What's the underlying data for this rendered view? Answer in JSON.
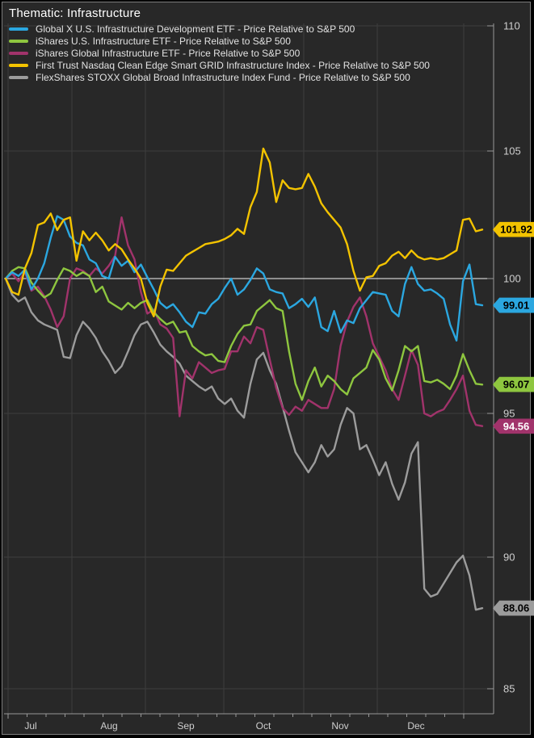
{
  "title": "Thematic: Infrastructure",
  "legend": [
    {
      "label": "Global X U.S. Infrastructure Development ETF - Price Relative to S&P 500",
      "color": "#2BA7E0"
    },
    {
      "label": "iShares U.S. Infrastructure ETF - Price Relative to S&P 500",
      "color": "#8EC63F"
    },
    {
      "label": "iShares Global Infrastructure ETF - Price Relative to S&P 500",
      "color": "#A1336B"
    },
    {
      "label": "First Trust Nasdaq Clean Edge Smart GRID Infrastructure Index - Price Relative to S&P 500",
      "color": "#F3C300"
    },
    {
      "label": "FlexShares STOXX Global Broad Infrastructure Index Fund - Price Relative to S&P 500",
      "color": "#9C9C9C"
    }
  ],
  "colors": {
    "background": "#282828",
    "frame": "#7d7d7d",
    "grid": "#3e3e3e",
    "baseline_100": "#f5f5f5",
    "axis": "#999999",
    "axis_text": "#cfcfcf"
  },
  "chart_data": {
    "type": "line",
    "title": "Thematic: Infrastructure",
    "xlabel": "",
    "ylabel": "",
    "ylim": [
      85,
      110
    ],
    "grid": true,
    "legend_position": "top-left",
    "baseline_value": 100,
    "y_axis": {
      "ticks": [
        "110",
        "105",
        "100",
        "95",
        "90",
        "85"
      ],
      "tick_values": [
        110,
        105,
        100,
        95,
        90,
        85
      ]
    },
    "x_axis": {
      "labels": [
        "Jul",
        "Aug",
        "Sep",
        "Oct",
        "Nov",
        "Dec"
      ]
    },
    "series": [
      {
        "name": "FlexShares STOXX Global Broad Infrastructure Index Fund - Price Relative to S&P 500",
        "color": "#9C9C9C",
        "end_label": "88.06",
        "end_value": 88.06,
        "tag_text_color": "#000000",
        "values": [
          100.0,
          99.4,
          99.15,
          99.3,
          98.75,
          98.45,
          98.3,
          98.2,
          98.1,
          97.1,
          97.05,
          97.9,
          98.4,
          98.15,
          97.8,
          97.3,
          96.95,
          96.5,
          96.75,
          97.3,
          97.9,
          98.3,
          98.4,
          98.0,
          97.55,
          97.3,
          97.1,
          96.85,
          96.4,
          96.2,
          96.0,
          95.85,
          96.0,
          95.55,
          95.35,
          95.55,
          95.1,
          94.85,
          96.1,
          97.0,
          97.25,
          96.6,
          96.1,
          95.25,
          94.4,
          93.65,
          93.3,
          92.95,
          93.3,
          93.9,
          93.5,
          93.75,
          94.6,
          95.2,
          95.0,
          93.75,
          93.9,
          93.4,
          92.85,
          93.3,
          92.55,
          92.0,
          92.6,
          93.6,
          94.0,
          88.8,
          88.5,
          88.6,
          89.0,
          89.4,
          89.8,
          90.05,
          89.3,
          88.0,
          88.06
        ]
      },
      {
        "name": "iShares Global Infrastructure ETF - Price Relative to S&P 500",
        "color": "#A1336B",
        "end_label": "94.56",
        "end_value": 94.56,
        "tag_text_color": "#ffffff",
        "values": [
          100.0,
          100.2,
          99.9,
          100.25,
          99.55,
          99.7,
          99.35,
          98.85,
          98.2,
          98.6,
          100.0,
          100.4,
          100.3,
          100.1,
          100.4,
          100.2,
          100.5,
          100.9,
          102.4,
          101.3,
          100.75,
          99.5,
          98.7,
          98.85,
          98.3,
          98.15,
          97.8,
          94.9,
          96.6,
          96.3,
          96.9,
          96.7,
          96.5,
          96.6,
          96.65,
          97.3,
          97.3,
          97.85,
          97.6,
          98.2,
          98.1,
          97.0,
          95.95,
          95.2,
          94.95,
          95.25,
          95.1,
          95.5,
          95.35,
          95.2,
          95.2,
          95.9,
          97.5,
          98.4,
          98.95,
          99.3,
          98.6,
          97.6,
          97.1,
          96.6,
          95.9,
          95.5,
          96.4,
          97.35,
          96.8,
          95.0,
          94.9,
          95.05,
          95.15,
          95.5,
          95.9,
          96.4,
          95.1,
          94.6,
          94.56
        ]
      },
      {
        "name": "iShares U.S. Infrastructure ETF - Price Relative to S&P 500",
        "color": "#8EC63F",
        "end_label": "96.07",
        "end_value": 96.07,
        "tag_text_color": "#000000",
        "values": [
          100.0,
          100.3,
          100.45,
          100.4,
          99.85,
          99.55,
          99.3,
          99.45,
          99.95,
          100.4,
          100.3,
          100.1,
          100.25,
          100.1,
          99.5,
          99.7,
          99.15,
          99.0,
          98.85,
          99.1,
          98.9,
          99.1,
          99.2,
          98.75,
          98.5,
          98.3,
          98.4,
          98.0,
          98.05,
          97.5,
          97.3,
          97.15,
          97.2,
          96.95,
          96.9,
          97.5,
          97.95,
          98.25,
          98.3,
          98.8,
          99.0,
          99.2,
          98.9,
          98.8,
          97.3,
          96.1,
          95.5,
          96.2,
          96.7,
          96.0,
          96.4,
          96.2,
          95.9,
          95.7,
          96.3,
          96.5,
          96.7,
          97.35,
          97.0,
          96.3,
          95.85,
          96.6,
          97.5,
          97.3,
          97.5,
          96.2,
          96.15,
          96.25,
          96.1,
          95.9,
          96.4,
          97.2,
          96.6,
          96.1,
          96.07
        ]
      },
      {
        "name": "Global X U.S. Infrastructure Development ETF - Price Relative to S&P 500",
        "color": "#2BA7E0",
        "end_label": "99.01",
        "end_value": 99.01,
        "tag_text_color": "#000000",
        "values": [
          100.0,
          100.25,
          100.1,
          100.35,
          99.6,
          100.0,
          100.6,
          101.6,
          102.45,
          102.3,
          101.65,
          101.4,
          101.3,
          100.75,
          100.6,
          100.1,
          100.0,
          100.85,
          100.5,
          100.7,
          100.25,
          100.55,
          100.05,
          99.6,
          99.1,
          98.9,
          99.05,
          98.75,
          98.4,
          98.2,
          98.75,
          98.7,
          99.05,
          99.25,
          99.65,
          100.0,
          99.4,
          99.6,
          99.95,
          100.4,
          100.2,
          99.6,
          99.5,
          99.45,
          98.9,
          99.05,
          99.25,
          98.95,
          99.3,
          98.2,
          98.05,
          98.8,
          98.0,
          98.45,
          98.35,
          98.9,
          99.2,
          99.5,
          99.45,
          99.4,
          98.8,
          98.6,
          99.8,
          100.45,
          99.8,
          99.55,
          99.6,
          99.45,
          99.25,
          98.3,
          97.7,
          99.9,
          100.55,
          99.05,
          99.01
        ]
      },
      {
        "name": "First Trust Nasdaq Clean Edge Smart GRID Infrastructure Index - Price Relative to S&P 500",
        "color": "#F3C300",
        "end_label": "101.92",
        "end_value": 101.92,
        "tag_text_color": "#000000",
        "values": [
          100.0,
          99.5,
          99.4,
          100.4,
          101.0,
          102.1,
          102.2,
          102.55,
          101.9,
          102.3,
          102.4,
          100.7,
          101.85,
          101.5,
          101.8,
          101.5,
          101.1,
          101.35,
          101.15,
          100.75,
          100.4,
          100.0,
          99.1,
          98.6,
          99.7,
          100.35,
          100.3,
          100.6,
          100.9,
          101.05,
          101.2,
          101.35,
          101.4,
          101.45,
          101.55,
          101.7,
          101.95,
          101.75,
          102.8,
          103.4,
          105.1,
          104.55,
          103.0,
          103.85,
          103.55,
          103.5,
          103.55,
          104.1,
          103.6,
          102.95,
          102.6,
          102.3,
          102.0,
          101.35,
          100.3,
          99.55,
          100.05,
          100.1,
          100.5,
          100.6,
          100.9,
          101.05,
          100.8,
          101.1,
          100.85,
          100.75,
          100.8,
          100.75,
          100.8,
          100.95,
          101.1,
          102.3,
          102.35,
          101.85,
          101.92
        ]
      }
    ]
  }
}
